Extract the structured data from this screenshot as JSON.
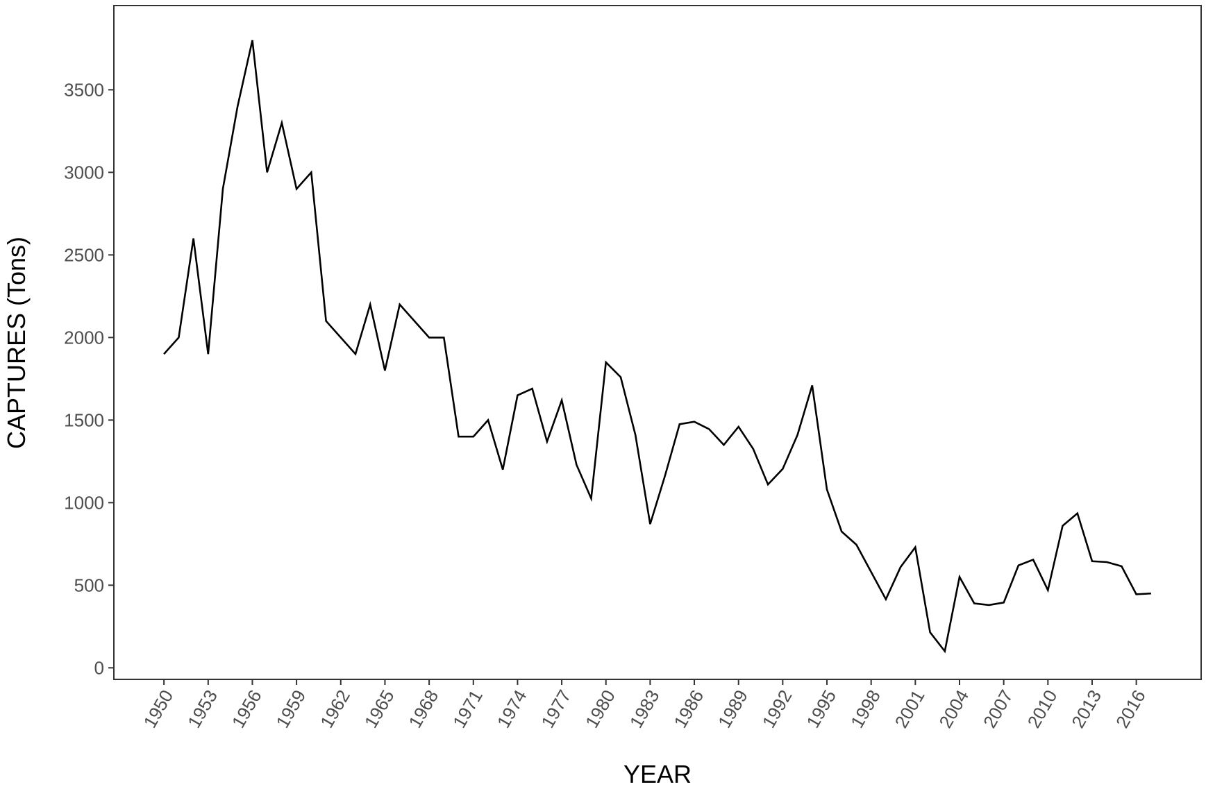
{
  "chart_data": {
    "type": "line",
    "title": "",
    "xlabel": "YEAR",
    "ylabel": "CAPTURES (Tons)",
    "xlim": [
      1946.6,
      2020.4
    ],
    "ylim": [
      -70,
      4010
    ],
    "x_ticks": [
      1950,
      1953,
      1956,
      1959,
      1962,
      1965,
      1968,
      1971,
      1974,
      1977,
      1980,
      1983,
      1986,
      1989,
      1992,
      1995,
      1998,
      2001,
      2004,
      2007,
      2010,
      2013,
      2016
    ],
    "y_ticks": [
      0,
      500,
      1000,
      1500,
      2000,
      2500,
      3000,
      3500
    ],
    "grid": false,
    "line_color": "#000000",
    "x": [
      1950,
      1951,
      1952,
      1953,
      1954,
      1955,
      1956,
      1957,
      1958,
      1959,
      1960,
      1961,
      1962,
      1963,
      1964,
      1965,
      1966,
      1967,
      1968,
      1969,
      1970,
      1971,
      1972,
      1973,
      1974,
      1975,
      1976,
      1977,
      1978,
      1979,
      1980,
      1981,
      1982,
      1983,
      1984,
      1985,
      1986,
      1987,
      1988,
      1989,
      1990,
      1991,
      1992,
      1993,
      1994,
      1995,
      1996,
      1997,
      1998,
      1999,
      2000,
      2001,
      2002,
      2003,
      2004,
      2005,
      2006,
      2007,
      2008,
      2009,
      2010,
      2011,
      2012,
      2013,
      2014,
      2015,
      2016,
      2017
    ],
    "series": [
      {
        "values": [
          1900,
          2000,
          2600,
          1900,
          2900,
          3400,
          3800,
          3000,
          3300,
          2900,
          3000,
          2100,
          2000,
          1900,
          2200,
          1800,
          2200,
          2100,
          2000,
          2000,
          1400,
          1400,
          1500,
          1200,
          1650,
          1690,
          1370,
          1620,
          1230,
          1025,
          1850,
          1760,
          1410,
          870,
          1160,
          1475,
          1490,
          1445,
          1350,
          1460,
          1325,
          1110,
          1205,
          1410,
          1710,
          1080,
          825,
          745,
          580,
          415,
          610,
          730,
          215,
          100,
          550,
          390,
          380,
          395,
          620,
          655,
          470,
          860,
          935,
          645,
          640,
          615,
          445,
          450
        ]
      }
    ]
  }
}
